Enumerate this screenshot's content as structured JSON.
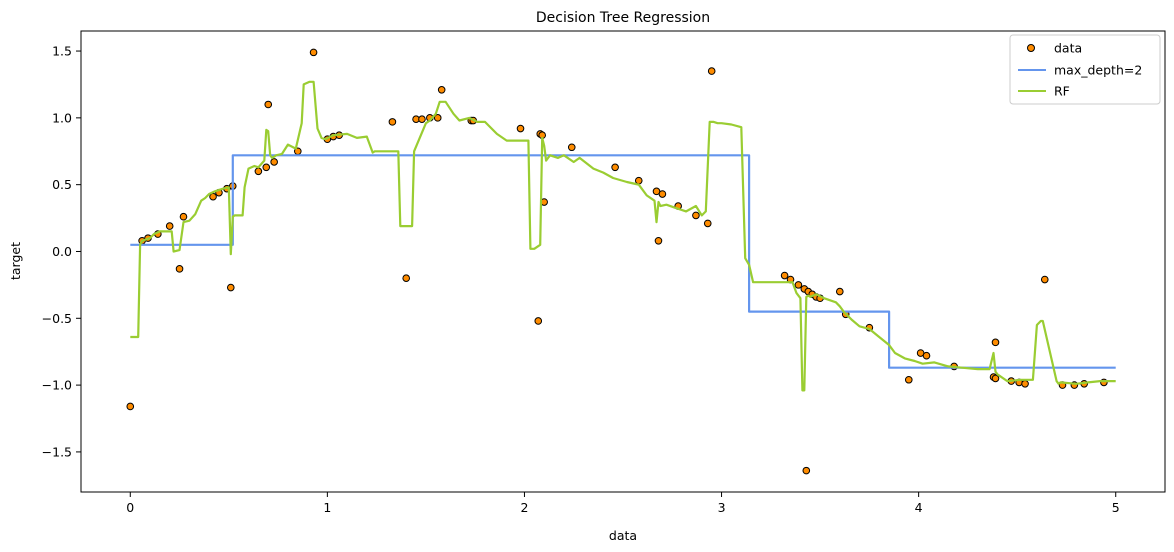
{
  "chart_data": {
    "type": "line",
    "title": "Decision Tree Regression",
    "xlabel": "data",
    "ylabel": "target",
    "xlim": [
      -0.25,
      5.25
    ],
    "ylim": [
      -1.8,
      1.65
    ],
    "xticks": [
      0,
      1,
      2,
      3,
      4,
      5
    ],
    "xtick_labels": [
      "0",
      "1",
      "2",
      "3",
      "4",
      "5"
    ],
    "yticks": [
      -1.5,
      -1.0,
      -0.5,
      0.0,
      0.5,
      1.0,
      1.5
    ],
    "ytick_labels": [
      "−1.5",
      "−1.0",
      "−0.5",
      "0.0",
      "0.5",
      "1.0",
      "1.5"
    ],
    "grid": false,
    "legend_position": "top-right",
    "legend": [
      "data",
      "max_depth=2",
      "RF"
    ],
    "colors": {
      "data_fill": "#ff8c00",
      "data_edge": "#000000",
      "max_depth": "#6495ed",
      "rf": "#9acd32"
    },
    "scatter": {
      "name": "data",
      "x": [
        0.0,
        0.06,
        0.09,
        0.14,
        0.2,
        0.25,
        0.27,
        0.42,
        0.45,
        0.49,
        0.52,
        0.51,
        0.65,
        0.69,
        0.7,
        0.73,
        0.85,
        0.93,
        1.0,
        1.03,
        1.06,
        1.33,
        1.4,
        1.45,
        1.48,
        1.52,
        1.56,
        1.58,
        1.73,
        1.74,
        1.98,
        2.07,
        2.08,
        2.09,
        2.1,
        2.24,
        2.46,
        2.58,
        2.67,
        2.68,
        2.7,
        2.78,
        2.87,
        2.93,
        2.95,
        3.32,
        3.35,
        3.39,
        3.42,
        3.44,
        3.46,
        3.48,
        3.5,
        3.6,
        3.63,
        3.75,
        3.95,
        4.01,
        4.04,
        4.18,
        4.38,
        4.39,
        4.39,
        4.47,
        4.51,
        4.54,
        4.64,
        4.73,
        4.79,
        4.84,
        4.94,
        3.43
      ],
      "y": [
        -1.16,
        0.08,
        0.1,
        0.13,
        0.19,
        -0.13,
        0.26,
        0.41,
        0.44,
        0.47,
        0.49,
        -0.27,
        0.6,
        0.63,
        1.1,
        0.67,
        0.75,
        1.49,
        0.84,
        0.86,
        0.87,
        0.97,
        -0.2,
        0.99,
        0.99,
        1.0,
        1.0,
        1.21,
        0.98,
        0.98,
        0.92,
        -0.52,
        0.88,
        0.87,
        0.37,
        0.78,
        0.63,
        0.53,
        0.45,
        0.08,
        0.43,
        0.34,
        0.27,
        0.21,
        1.35,
        -0.18,
        -0.21,
        -0.25,
        -0.28,
        -0.3,
        -0.32,
        -0.34,
        -0.35,
        -0.3,
        -0.47,
        -0.57,
        -0.96,
        -0.76,
        -0.78,
        -0.86,
        -0.94,
        -0.68,
        -0.95,
        -0.97,
        -0.98,
        -0.99,
        -0.21,
        -1.0,
        -1.0,
        -0.99,
        -0.98,
        -1.64
      ]
    },
    "series": [
      {
        "name": "max_depth=2",
        "x": [
          0.0,
          0.52,
          0.52,
          3.14,
          3.14,
          3.85,
          3.85,
          5.0
        ],
        "y": [
          0.05,
          0.05,
          0.72,
          0.72,
          -0.45,
          -0.45,
          -0.87,
          -0.87
        ]
      },
      {
        "name": "RF",
        "x": [
          0.0,
          0.04,
          0.05,
          0.06,
          0.1,
          0.12,
          0.15,
          0.19,
          0.21,
          0.22,
          0.25,
          0.27,
          0.3,
          0.33,
          0.36,
          0.38,
          0.4,
          0.43,
          0.47,
          0.5,
          0.51,
          0.52,
          0.53,
          0.57,
          0.58,
          0.6,
          0.63,
          0.65,
          0.68,
          0.69,
          0.7,
          0.71,
          0.72,
          0.74,
          0.77,
          0.8,
          0.84,
          0.87,
          0.88,
          0.91,
          0.93,
          0.95,
          0.97,
          0.99,
          1.03,
          1.1,
          1.15,
          1.2,
          1.23,
          1.24,
          1.28,
          1.36,
          1.37,
          1.38,
          1.43,
          1.44,
          1.5,
          1.52,
          1.55,
          1.57,
          1.6,
          1.64,
          1.67,
          1.72,
          1.76,
          1.8,
          1.86,
          1.91,
          1.98,
          2.02,
          2.03,
          2.05,
          2.08,
          2.09,
          2.1,
          2.11,
          2.12,
          2.13,
          2.17,
          2.2,
          2.25,
          2.28,
          2.35,
          2.4,
          2.45,
          2.52,
          2.58,
          2.62,
          2.66,
          2.67,
          2.68,
          2.69,
          2.72,
          2.76,
          2.82,
          2.87,
          2.9,
          2.92,
          2.94,
          2.96,
          2.98,
          3.0,
          3.05,
          3.1,
          3.12,
          3.14,
          3.16,
          3.2,
          3.25,
          3.3,
          3.36,
          3.38,
          3.4,
          3.41,
          3.42,
          3.43,
          3.44,
          3.45,
          3.48,
          3.52,
          3.58,
          3.6,
          3.62,
          3.66,
          3.7,
          3.75,
          3.8,
          3.85,
          3.88,
          3.93,
          3.98,
          4.02,
          4.08,
          4.15,
          4.22,
          4.3,
          4.36,
          4.38,
          4.39,
          4.4,
          4.41,
          4.45,
          4.52,
          4.58,
          4.6,
          4.62,
          4.63,
          4.7,
          4.71,
          4.72,
          4.8,
          4.86,
          4.92,
          4.96,
          5.0
        ],
        "y": [
          -0.64,
          -0.64,
          0.05,
          0.08,
          0.1,
          0.13,
          0.15,
          0.15,
          0.15,
          0.0,
          0.01,
          0.22,
          0.23,
          0.28,
          0.38,
          0.4,
          0.43,
          0.45,
          0.47,
          0.48,
          -0.02,
          0.26,
          0.27,
          0.27,
          0.48,
          0.62,
          0.64,
          0.63,
          0.68,
          0.91,
          0.9,
          0.72,
          0.7,
          0.72,
          0.73,
          0.8,
          0.77,
          0.96,
          1.25,
          1.27,
          1.27,
          0.92,
          0.85,
          0.84,
          0.87,
          0.88,
          0.85,
          0.86,
          0.74,
          0.75,
          0.75,
          0.75,
          0.19,
          0.19,
          0.19,
          0.75,
          0.96,
          0.98,
          1.03,
          1.12,
          1.12,
          1.03,
          0.98,
          1.0,
          0.97,
          0.97,
          0.88,
          0.83,
          0.83,
          0.83,
          0.02,
          0.02,
          0.05,
          0.85,
          0.79,
          0.68,
          0.7,
          0.72,
          0.7,
          0.72,
          0.67,
          0.7,
          0.62,
          0.59,
          0.55,
          0.52,
          0.5,
          0.42,
          0.38,
          0.22,
          0.37,
          0.34,
          0.35,
          0.33,
          0.3,
          0.34,
          0.27,
          0.3,
          0.97,
          0.97,
          0.96,
          0.96,
          0.95,
          0.93,
          -0.05,
          -0.1,
          -0.23,
          -0.23,
          -0.23,
          -0.23,
          -0.23,
          -0.31,
          -0.35,
          -1.04,
          -1.04,
          -0.34,
          -0.33,
          -0.34,
          -0.32,
          -0.35,
          -0.38,
          -0.41,
          -0.45,
          -0.51,
          -0.56,
          -0.58,
          -0.64,
          -0.7,
          -0.76,
          -0.8,
          -0.82,
          -0.84,
          -0.83,
          -0.86,
          -0.87,
          -0.88,
          -0.88,
          -0.76,
          -0.9,
          -0.92,
          -0.93,
          -0.97,
          -0.96,
          -0.96,
          -0.55,
          -0.52,
          -0.52,
          -0.97,
          -0.99,
          -0.98,
          -0.99,
          -0.98,
          -0.97,
          -0.97,
          -0.97
        ]
      }
    ]
  }
}
